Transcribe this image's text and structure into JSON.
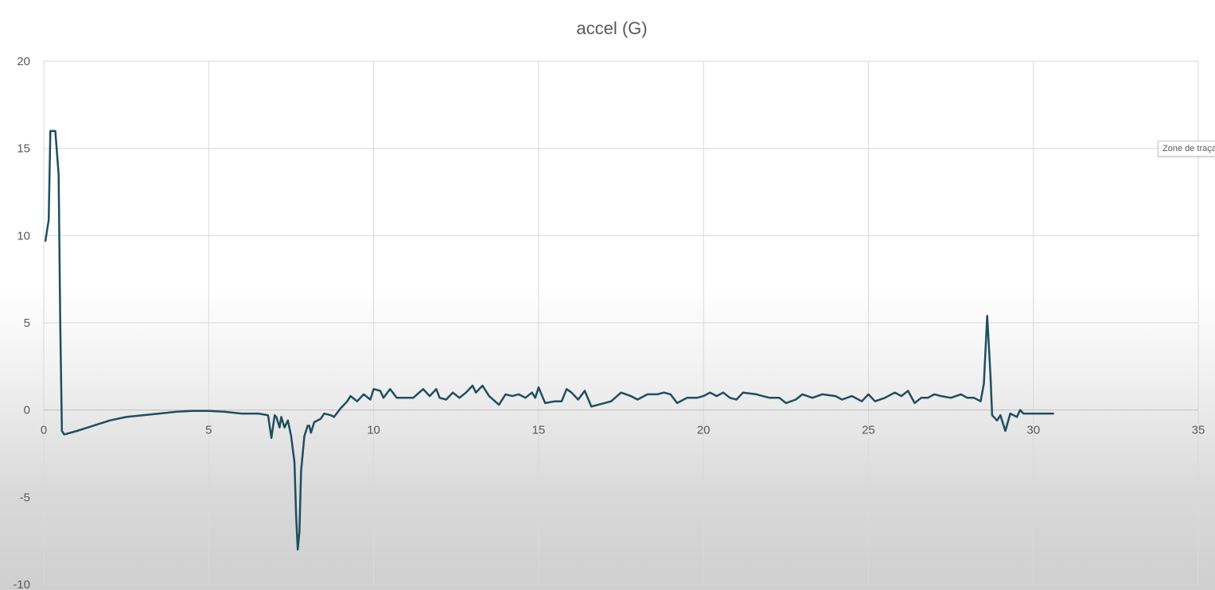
{
  "chart_data": {
    "type": "line",
    "title": "accel (G)",
    "xlabel": "",
    "ylabel": "",
    "xlim": [
      0,
      35
    ],
    "ylim": [
      -10,
      20
    ],
    "x_ticks": [
      0,
      5,
      10,
      15,
      20,
      25,
      30,
      35
    ],
    "y_ticks": [
      -10,
      -5,
      0,
      5,
      10,
      15,
      20
    ],
    "grid": true,
    "line_color": "#1f4e5f",
    "series": [
      {
        "name": "accel (G)",
        "points": [
          [
            0.05,
            9.7
          ],
          [
            0.15,
            10.9
          ],
          [
            0.2,
            16.0
          ],
          [
            0.35,
            16.0
          ],
          [
            0.45,
            13.5
          ],
          [
            0.5,
            5.0
          ],
          [
            0.55,
            -1.2
          ],
          [
            0.62,
            -1.4
          ],
          [
            1.0,
            -1.2
          ],
          [
            1.5,
            -0.9
          ],
          [
            2.0,
            -0.6
          ],
          [
            2.5,
            -0.4
          ],
          [
            3.0,
            -0.3
          ],
          [
            3.5,
            -0.2
          ],
          [
            4.0,
            -0.1
          ],
          [
            4.5,
            -0.05
          ],
          [
            5.0,
            -0.05
          ],
          [
            5.5,
            -0.1
          ],
          [
            6.0,
            -0.2
          ],
          [
            6.5,
            -0.2
          ],
          [
            6.8,
            -0.3
          ],
          [
            6.9,
            -1.6
          ],
          [
            7.0,
            -0.3
          ],
          [
            7.05,
            -0.4
          ],
          [
            7.15,
            -1.0
          ],
          [
            7.2,
            -0.4
          ],
          [
            7.3,
            -1.0
          ],
          [
            7.4,
            -0.6
          ],
          [
            7.5,
            -1.5
          ],
          [
            7.6,
            -3.0
          ],
          [
            7.65,
            -6.0
          ],
          [
            7.7,
            -8.0
          ],
          [
            7.75,
            -7.0
          ],
          [
            7.8,
            -3.5
          ],
          [
            7.9,
            -1.5
          ],
          [
            8.0,
            -0.9
          ],
          [
            8.05,
            -0.9
          ],
          [
            8.1,
            -1.3
          ],
          [
            8.2,
            -0.7
          ],
          [
            8.4,
            -0.5
          ],
          [
            8.5,
            -0.2
          ],
          [
            8.7,
            -0.3
          ],
          [
            8.8,
            -0.4
          ],
          [
            9.0,
            0.1
          ],
          [
            9.2,
            0.5
          ],
          [
            9.3,
            0.8
          ],
          [
            9.5,
            0.5
          ],
          [
            9.7,
            0.9
          ],
          [
            9.9,
            0.6
          ],
          [
            10.0,
            1.2
          ],
          [
            10.2,
            1.1
          ],
          [
            10.3,
            0.7
          ],
          [
            10.5,
            1.2
          ],
          [
            10.7,
            0.7
          ],
          [
            11.0,
            0.7
          ],
          [
            11.2,
            0.7
          ],
          [
            11.5,
            1.2
          ],
          [
            11.7,
            0.8
          ],
          [
            11.9,
            1.2
          ],
          [
            12.0,
            0.7
          ],
          [
            12.2,
            0.6
          ],
          [
            12.4,
            1.0
          ],
          [
            12.6,
            0.7
          ],
          [
            12.8,
            1.0
          ],
          [
            13.0,
            1.4
          ],
          [
            13.1,
            1.0
          ],
          [
            13.3,
            1.4
          ],
          [
            13.5,
            0.8
          ],
          [
            13.8,
            0.3
          ],
          [
            14.0,
            0.9
          ],
          [
            14.2,
            0.8
          ],
          [
            14.4,
            0.9
          ],
          [
            14.6,
            0.7
          ],
          [
            14.8,
            1.0
          ],
          [
            14.9,
            0.7
          ],
          [
            15.0,
            1.3
          ],
          [
            15.2,
            0.4
          ],
          [
            15.5,
            0.5
          ],
          [
            15.7,
            0.5
          ],
          [
            15.85,
            1.2
          ],
          [
            16.0,
            1.0
          ],
          [
            16.2,
            0.6
          ],
          [
            16.4,
            1.1
          ],
          [
            16.6,
            0.2
          ],
          [
            17.0,
            0.4
          ],
          [
            17.2,
            0.5
          ],
          [
            17.5,
            1.0
          ],
          [
            17.8,
            0.8
          ],
          [
            18.0,
            0.6
          ],
          [
            18.3,
            0.9
          ],
          [
            18.6,
            0.9
          ],
          [
            18.8,
            1.0
          ],
          [
            19.0,
            0.9
          ],
          [
            19.2,
            0.4
          ],
          [
            19.5,
            0.7
          ],
          [
            19.8,
            0.7
          ],
          [
            20.0,
            0.8
          ],
          [
            20.2,
            1.0
          ],
          [
            20.4,
            0.8
          ],
          [
            20.6,
            1.0
          ],
          [
            20.8,
            0.7
          ],
          [
            21.0,
            0.6
          ],
          [
            21.2,
            1.0
          ],
          [
            21.6,
            0.9
          ],
          [
            22.0,
            0.7
          ],
          [
            22.3,
            0.7
          ],
          [
            22.5,
            0.4
          ],
          [
            22.8,
            0.6
          ],
          [
            23.0,
            0.9
          ],
          [
            23.3,
            0.7
          ],
          [
            23.6,
            0.9
          ],
          [
            24.0,
            0.8
          ],
          [
            24.2,
            0.6
          ],
          [
            24.5,
            0.8
          ],
          [
            24.8,
            0.5
          ],
          [
            25.0,
            0.9
          ],
          [
            25.2,
            0.5
          ],
          [
            25.5,
            0.7
          ],
          [
            25.8,
            1.0
          ],
          [
            26.0,
            0.8
          ],
          [
            26.2,
            1.1
          ],
          [
            26.4,
            0.4
          ],
          [
            26.6,
            0.7
          ],
          [
            26.8,
            0.7
          ],
          [
            27.0,
            0.9
          ],
          [
            27.2,
            0.8
          ],
          [
            27.5,
            0.7
          ],
          [
            27.8,
            0.9
          ],
          [
            28.0,
            0.7
          ],
          [
            28.2,
            0.7
          ],
          [
            28.4,
            0.5
          ],
          [
            28.5,
            1.5
          ],
          [
            28.6,
            5.4
          ],
          [
            28.7,
            2.0
          ],
          [
            28.75,
            -0.3
          ],
          [
            28.9,
            -0.6
          ],
          [
            29.0,
            -0.3
          ],
          [
            29.15,
            -1.2
          ],
          [
            29.3,
            -0.2
          ],
          [
            29.5,
            -0.4
          ],
          [
            29.6,
            0.0
          ],
          [
            29.7,
            -0.2
          ],
          [
            29.8,
            -0.2
          ],
          [
            30.0,
            -0.2
          ],
          [
            30.3,
            -0.2
          ],
          [
            30.6,
            -0.2
          ]
        ]
      }
    ]
  },
  "tooltip": {
    "text": "Zone de traçage"
  }
}
